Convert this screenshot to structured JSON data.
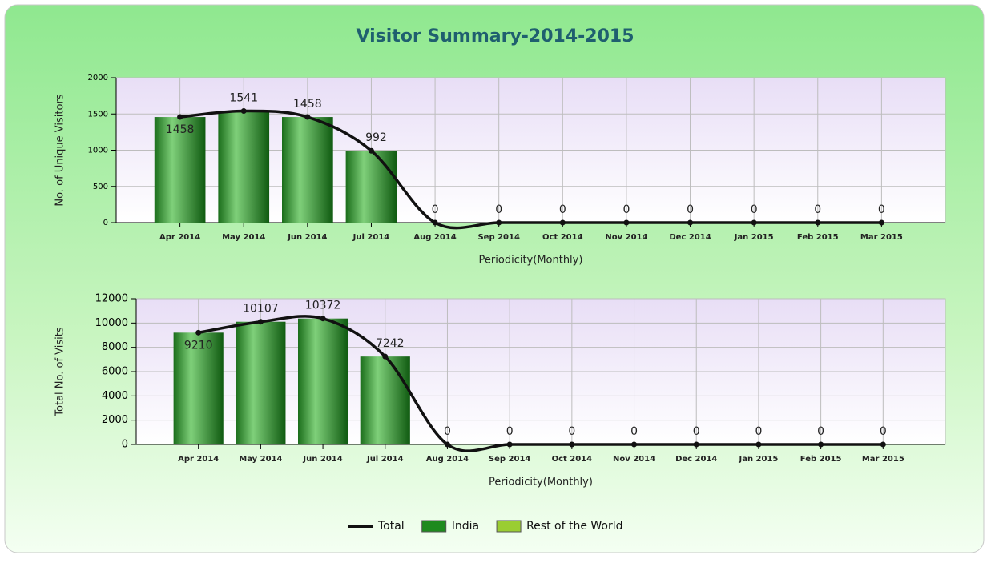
{
  "title": "Visitor Summary-2014-2015",
  "chart_data": [
    {
      "type": "bar",
      "ylabel": "No. of Unique Visitors",
      "xlabel": "Periodicity(Monthly)",
      "categories": [
        "Apr 2014",
        "May 2014",
        "Jun 2014",
        "Jul 2014",
        "Aug 2014",
        "Sep 2014",
        "Oct 2014",
        "Nov 2014",
        "Dec 2014",
        "Jan 2015",
        "Feb 2015",
        "Mar 2015"
      ],
      "series": [
        {
          "color": "#111111",
          "mark": "line",
          "values": [
            1458,
            1541,
            1458,
            992,
            0,
            0,
            0,
            0,
            0,
            0,
            0,
            0
          ]
        },
        {
          "color": "#1e8a1e",
          "mark": "bar",
          "values": [
            1458,
            1541,
            1458,
            992,
            0,
            0,
            0,
            0,
            0,
            0,
            0,
            0
          ]
        },
        {
          "color": "#9acd32",
          "mark": "bar",
          "values": [
            0,
            0,
            0,
            0,
            0,
            0,
            0,
            0,
            0,
            0,
            0,
            0
          ]
        }
      ],
      "ylim": [
        0,
        2000
      ],
      "yticks": [
        0,
        500,
        1000,
        1500,
        2000
      ],
      "grid": true
    },
    {
      "type": "bar",
      "ylabel": "Total No. of Visits",
      "xlabel": "Periodicity(Monthly)",
      "categories": [
        "Apr 2014",
        "May 2014",
        "Jun 2014",
        "Jul 2014",
        "Aug 2014",
        "Sep 2014",
        "Oct 2014",
        "Nov 2014",
        "Dec 2014",
        "Jan 2015",
        "Feb 2015",
        "Mar 2015"
      ],
      "series": [
        {
          "name": "Total",
          "color": "#111111",
          "mark": "line",
          "values": [
            9210,
            10107,
            10372,
            7242,
            0,
            0,
            0,
            0,
            0,
            0,
            0,
            0
          ]
        },
        {
          "name": "India",
          "color": "#1e8a1e",
          "mark": "bar",
          "values": [
            9210,
            10107,
            10372,
            7242,
            0,
            0,
            0,
            0,
            0,
            0,
            0,
            0
          ]
        },
        {
          "name": "Rest of the World",
          "color": "#9acd32",
          "mark": "bar",
          "values": [
            0,
            0,
            0,
            0,
            0,
            0,
            0,
            0,
            0,
            0,
            0,
            0
          ]
        }
      ],
      "ylim": [
        0,
        12000
      ],
      "yticks": [
        0,
        2000,
        4000,
        6000,
        8000,
        10000,
        12000
      ],
      "grid": true
    }
  ]
}
